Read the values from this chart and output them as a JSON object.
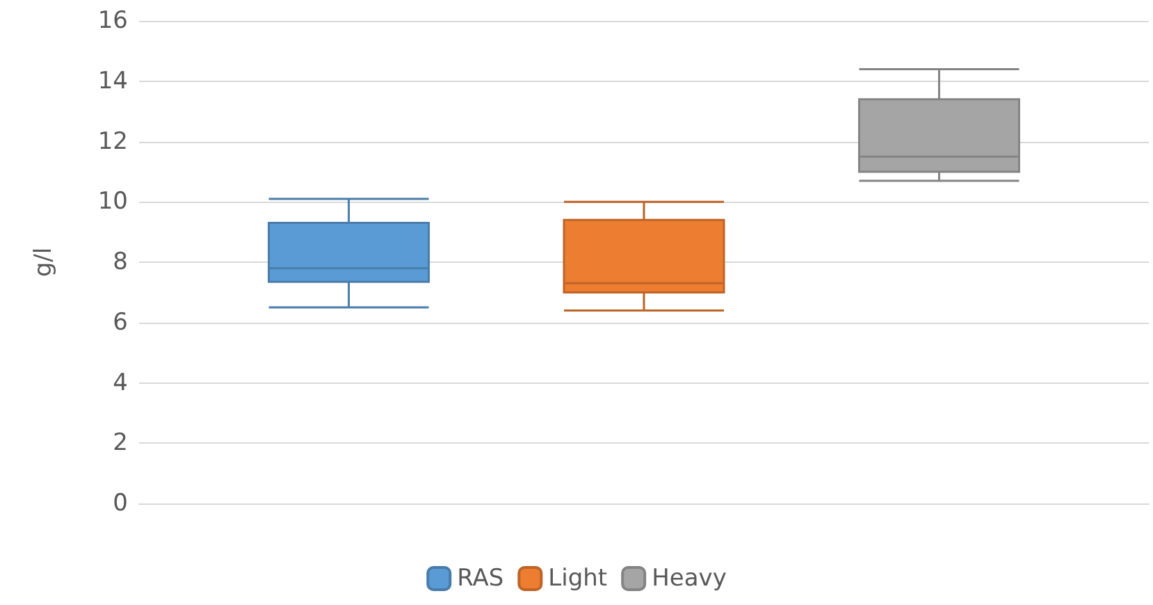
{
  "chart_data": {
    "type": "box",
    "ylabel": "g/l",
    "categories": [
      null
    ],
    "ylim": [
      0,
      16
    ],
    "yticks": [
      0,
      2,
      4,
      6,
      8,
      10,
      12,
      14,
      16
    ],
    "grid": "y",
    "legend": "bottom",
    "series": [
      {
        "name": "RAS",
        "color": "#5b9bd5",
        "boxes": [
          {
            "low": 6.5,
            "q1": 7.35,
            "median": 7.8,
            "q3": 9.3,
            "high": 10.1
          }
        ]
      },
      {
        "name": "Light",
        "color": "#ed7d31",
        "boxes": [
          {
            "low": 6.4,
            "q1": 7.0,
            "median": 7.3,
            "q3": 9.4,
            "high": 10.0
          }
        ]
      },
      {
        "name": "Heavy",
        "color": "#a5a5a5",
        "boxes": [
          {
            "low": 10.7,
            "q1": 11.0,
            "median": 11.5,
            "q3": 13.4,
            "high": 14.4
          }
        ]
      }
    ]
  }
}
